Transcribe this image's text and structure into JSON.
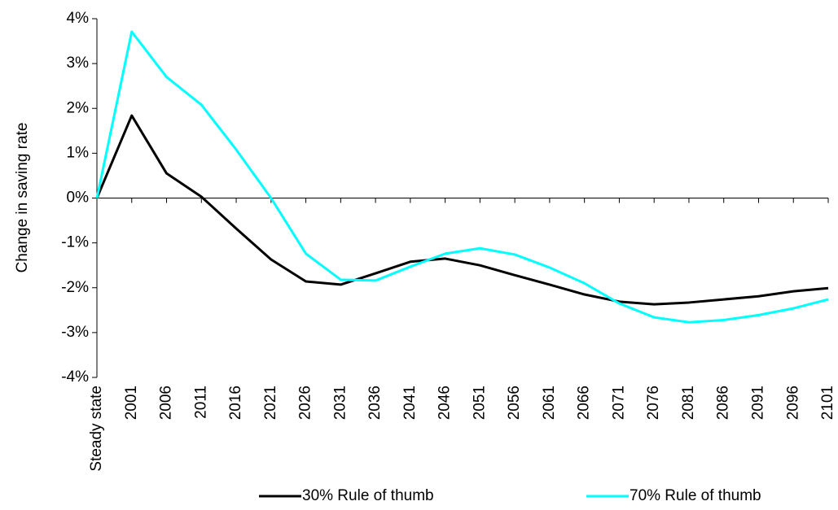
{
  "chart_data": {
    "type": "line",
    "y_axis_label": "Change in saving rate",
    "categories": [
      "Steady state",
      "2001",
      "2006",
      "2011",
      "2016",
      "2021",
      "2026",
      "2031",
      "2036",
      "2041",
      "2046",
      "2051",
      "2056",
      "2061",
      "2066",
      "2071",
      "2076",
      "2081",
      "2086",
      "2091",
      "2096",
      "2101"
    ],
    "series": [
      {
        "name": "30% Rule of thumb",
        "color": "#000000",
        "values": [
          0,
          1.84,
          0.55,
          0.03,
          -0.68,
          -1.37,
          -1.86,
          -1.93,
          -1.68,
          -1.42,
          -1.35,
          -1.5,
          -1.72,
          -1.93,
          -2.15,
          -2.31,
          -2.37,
          -2.33,
          -2.26,
          -2.19,
          -2.08,
          -2.01
        ]
      },
      {
        "name": "70% Rule of thumb",
        "color": "#00ffff",
        "values": [
          0,
          3.71,
          2.7,
          2.08,
          1.08,
          0.0,
          -1.24,
          -1.82,
          -1.84,
          -1.53,
          -1.24,
          -1.12,
          -1.26,
          -1.55,
          -1.9,
          -2.35,
          -2.66,
          -2.77,
          -2.72,
          -2.61,
          -2.46,
          -2.26
        ]
      }
    ],
    "ylim": [
      -4,
      4
    ],
    "yticks": [
      {
        "value": -4,
        "label": "-4%"
      },
      {
        "value": -3,
        "label": "-3%"
      },
      {
        "value": -2,
        "label": "-2%"
      },
      {
        "value": -1,
        "label": "-1%"
      },
      {
        "value": 0,
        "label": "0%"
      },
      {
        "value": 1,
        "label": "1%"
      },
      {
        "value": 2,
        "label": "2%"
      },
      {
        "value": 3,
        "label": "3%"
      },
      {
        "value": 4,
        "label": "4%"
      }
    ],
    "legend": "bottom"
  }
}
